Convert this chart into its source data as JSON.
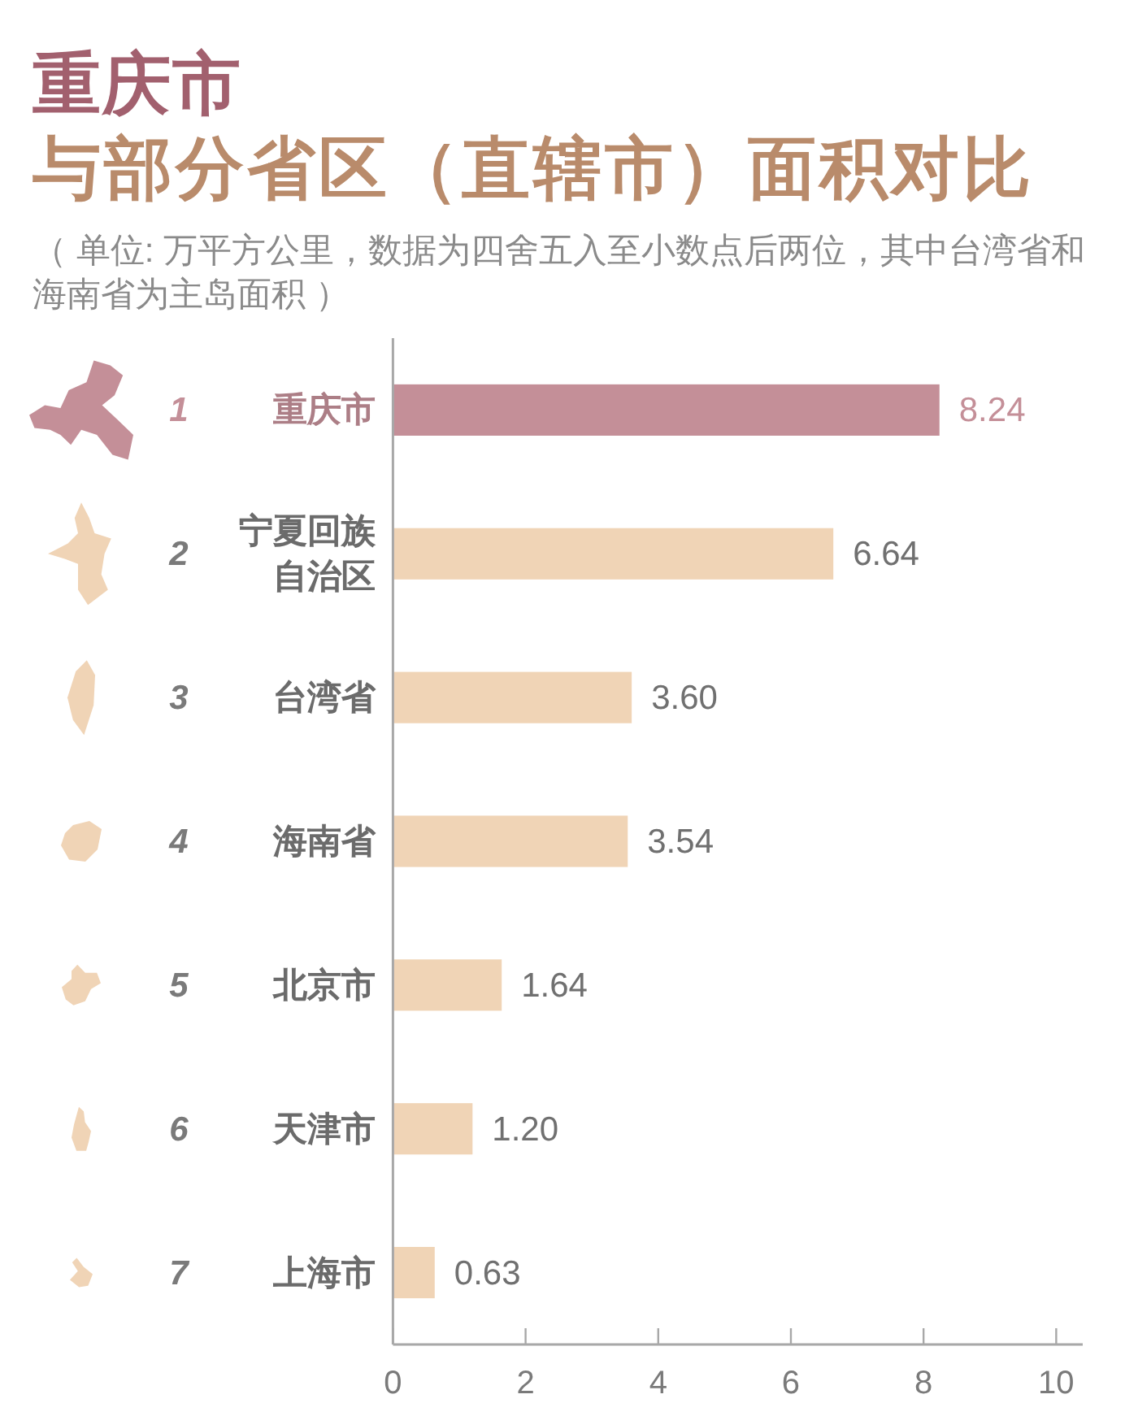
{
  "chart_data": {
    "type": "bar",
    "orientation": "horizontal",
    "title": "重庆市",
    "subtitle": "与部分省区（直辖市）面积对比",
    "annotations": [
      "（ 单位: 万平方公里，数据为四舍五入至小数点后两位，其中台湾省和海南省为主岛面积 ）",
      "1",
      "2",
      "3",
      "4",
      "5",
      "6",
      "7"
    ],
    "categories": [
      "重庆市",
      "宁夏回族自治区",
      "台湾省",
      "海南省",
      "北京市",
      "天津市",
      "上海市"
    ],
    "values": [
      8.24,
      6.64,
      3.6,
      3.54,
      1.64,
      1.2,
      0.63
    ],
    "colors": [
      "#c48f98",
      "#f0d4b6",
      "#f0d4b6",
      "#f0d4b6",
      "#f0d4b6",
      "#f0d4b6",
      "#f0d4b6"
    ],
    "value_labels": [
      "8.24",
      "6.64",
      "3.60",
      "3.54",
      "1.64",
      "1.20",
      "0.63"
    ],
    "xlim": [
      0,
      10.4
    ],
    "xticks": [
      0,
      2,
      4,
      6,
      8,
      10
    ]
  }
}
